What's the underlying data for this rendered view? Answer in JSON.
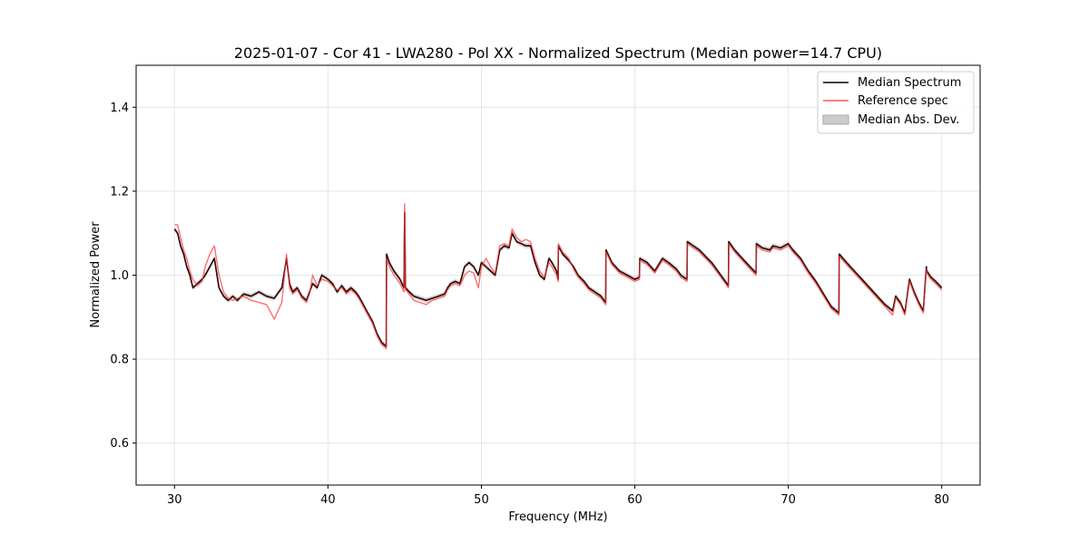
{
  "chart_data": {
    "type": "line",
    "title": "2025-01-07 - Cor 41 - LWA280 - Pol XX - Normalized Spectrum (Median power=14.7 CPU)",
    "xlabel": "Frequency (MHz)",
    "ylabel": "Normalized Power",
    "xlim": [
      27.5,
      82.5
    ],
    "ylim": [
      0.5,
      1.5
    ],
    "xticks": [
      30,
      40,
      50,
      60,
      70,
      80
    ],
    "yticks": [
      0.6,
      0.8,
      1.0,
      1.2,
      1.4
    ],
    "xtick_labels": [
      "30",
      "40",
      "50",
      "60",
      "70",
      "80"
    ],
    "ytick_labels": [
      "0.6",
      "0.8",
      "1.0",
      "1.2",
      "1.4"
    ],
    "grid": true,
    "legend_position": "top-right",
    "legend": [
      "Median Spectrum",
      "Reference spec",
      "Median Abs. Dev."
    ],
    "colors": {
      "median": "#000000",
      "reference": "#ff5555",
      "overlap": "#8b0000",
      "mad_fill": "#cccccc",
      "grid": "#e6e6e6"
    },
    "series": [
      {
        "name": "Median Spectrum",
        "x": [
          30.0,
          30.2,
          30.4,
          30.6,
          30.8,
          31.0,
          31.2,
          31.5,
          31.8,
          32.0,
          32.3,
          32.6,
          32.9,
          33.2,
          33.5,
          33.8,
          34.1,
          34.5,
          35.0,
          35.5,
          36.0,
          36.5,
          37.0,
          37.3,
          37.5,
          37.7,
          38.0,
          38.3,
          38.6,
          38.8,
          39.0,
          39.3,
          39.6,
          40.0,
          40.3,
          40.6,
          40.9,
          41.2,
          41.5,
          41.8,
          42.0,
          42.3,
          42.6,
          42.9,
          43.2,
          43.5,
          43.8,
          43.82,
          44.0,
          44.3,
          44.7,
          44.95,
          45.0,
          45.05,
          45.3,
          45.6,
          46.0,
          46.4,
          46.8,
          47.2,
          47.6,
          47.8,
          48.0,
          48.3,
          48.6,
          48.9,
          49.2,
          49.5,
          49.8,
          50.0,
          50.3,
          50.6,
          50.9,
          51.2,
          51.5,
          51.8,
          52.0,
          52.3,
          52.6,
          52.9,
          53.2,
          53.5,
          53.8,
          54.1,
          54.4,
          54.6,
          54.9,
          55.0,
          55.02,
          55.3,
          55.7,
          56.0,
          56.3,
          56.7,
          57.0,
          57.4,
          57.8,
          58.1,
          58.12,
          58.5,
          59.0,
          59.5,
          60.0,
          60.3,
          60.32,
          60.8,
          61.3,
          61.8,
          62.2,
          62.7,
          63.0,
          63.4,
          63.42,
          63.8,
          64.2,
          64.6,
          65.0,
          65.4,
          65.8,
          66.1,
          66.12,
          66.5,
          67.0,
          67.5,
          67.9,
          67.92,
          68.3,
          68.8,
          69.0,
          69.5,
          70.0,
          70.3,
          70.8,
          71.3,
          71.8,
          72.3,
          72.8,
          73.3,
          73.32,
          73.8,
          74.3,
          74.8,
          75.3,
          75.8,
          76.3,
          76.8,
          77.0,
          77.3,
          77.6,
          77.9,
          78.2,
          78.5,
          78.8,
          79.0,
          79.02,
          79.3,
          79.6,
          80.0
        ],
        "values": [
          1.11,
          1.1,
          1.07,
          1.05,
          1.02,
          1.0,
          0.97,
          0.98,
          0.99,
          1.0,
          1.02,
          1.04,
          0.97,
          0.95,
          0.94,
          0.95,
          0.94,
          0.955,
          0.95,
          0.96,
          0.95,
          0.945,
          0.97,
          1.04,
          0.98,
          0.96,
          0.97,
          0.95,
          0.94,
          0.96,
          0.98,
          0.97,
          1.0,
          0.99,
          0.98,
          0.96,
          0.975,
          0.96,
          0.97,
          0.96,
          0.95,
          0.93,
          0.91,
          0.89,
          0.86,
          0.84,
          0.83,
          1.05,
          1.03,
          1.01,
          0.99,
          0.97,
          1.15,
          0.97,
          0.96,
          0.95,
          0.945,
          0.94,
          0.945,
          0.95,
          0.955,
          0.97,
          0.98,
          0.985,
          0.98,
          1.02,
          1.03,
          1.02,
          1.0,
          1.03,
          1.02,
          1.01,
          1.0,
          1.06,
          1.07,
          1.065,
          1.1,
          1.08,
          1.075,
          1.07,
          1.07,
          1.03,
          1.0,
          0.99,
          1.04,
          1.03,
          1.01,
          0.99,
          1.07,
          1.05,
          1.035,
          1.02,
          1.0,
          0.985,
          0.97,
          0.96,
          0.95,
          0.935,
          1.06,
          1.03,
          1.01,
          1.0,
          0.99,
          0.995,
          1.04,
          1.03,
          1.01,
          1.04,
          1.03,
          1.015,
          1.0,
          0.99,
          1.08,
          1.07,
          1.06,
          1.045,
          1.03,
          1.01,
          0.99,
          0.975,
          1.08,
          1.06,
          1.04,
          1.02,
          1.005,
          1.075,
          1.065,
          1.06,
          1.07,
          1.065,
          1.075,
          1.06,
          1.04,
          1.01,
          0.985,
          0.955,
          0.925,
          0.91,
          1.05,
          1.03,
          1.01,
          0.99,
          0.97,
          0.95,
          0.93,
          0.915,
          0.95,
          0.935,
          0.91,
          0.99,
          0.96,
          0.935,
          0.915,
          1.02,
          1.01,
          0.995,
          0.985,
          0.97
        ]
      },
      {
        "name": "Reference spec",
        "x": [
          30.0,
          30.2,
          30.4,
          30.6,
          30.8,
          31.0,
          31.2,
          31.5,
          31.8,
          32.0,
          32.3,
          32.6,
          32.9,
          33.2,
          33.5,
          33.8,
          34.1,
          34.5,
          35.0,
          35.5,
          36.0,
          36.5,
          37.0,
          37.3,
          37.5,
          37.7,
          38.0,
          38.3,
          38.6,
          38.8,
          39.0,
          39.3,
          39.6,
          40.0,
          40.3,
          40.6,
          40.9,
          41.2,
          41.5,
          41.8,
          42.0,
          42.3,
          42.6,
          42.9,
          43.2,
          43.5,
          43.8,
          43.82,
          44.0,
          44.3,
          44.7,
          44.95,
          45.0,
          45.05,
          45.3,
          45.6,
          46.0,
          46.4,
          46.8,
          47.2,
          47.6,
          47.8,
          48.0,
          48.3,
          48.6,
          48.9,
          49.2,
          49.5,
          49.8,
          50.0,
          50.3,
          50.6,
          50.9,
          51.2,
          51.5,
          51.8,
          52.0,
          52.3,
          52.6,
          52.9,
          53.2,
          53.5,
          53.8,
          54.1,
          54.4,
          54.6,
          54.9,
          55.0,
          55.02,
          55.3,
          55.7,
          56.0,
          56.3,
          56.7,
          57.0,
          57.4,
          57.8,
          58.1,
          58.12,
          58.5,
          59.0,
          59.5,
          60.0,
          60.3,
          60.32,
          60.8,
          61.3,
          61.8,
          62.2,
          62.7,
          63.0,
          63.4,
          63.42,
          63.8,
          64.2,
          64.6,
          65.0,
          65.4,
          65.8,
          66.1,
          66.12,
          66.5,
          67.0,
          67.5,
          67.9,
          67.92,
          68.3,
          68.8,
          69.0,
          69.5,
          70.0,
          70.3,
          70.8,
          71.3,
          71.8,
          72.3,
          72.8,
          73.3,
          73.32,
          73.8,
          74.3,
          74.8,
          75.3,
          75.8,
          76.3,
          76.8,
          77.0,
          77.3,
          77.6,
          77.9,
          78.2,
          78.5,
          78.8,
          79.0,
          79.02,
          79.3,
          79.6,
          80.0
        ],
        "values": [
          1.12,
          1.12,
          1.09,
          1.06,
          1.04,
          1.01,
          0.99,
          0.975,
          0.985,
          1.02,
          1.05,
          1.07,
          1.0,
          0.96,
          0.945,
          0.94,
          0.945,
          0.95,
          0.94,
          0.935,
          0.93,
          0.895,
          0.935,
          1.05,
          0.97,
          0.955,
          0.965,
          0.945,
          0.935,
          0.955,
          1.0,
          0.975,
          0.99,
          0.985,
          0.975,
          0.965,
          0.97,
          0.955,
          0.965,
          0.955,
          0.945,
          0.925,
          0.905,
          0.885,
          0.855,
          0.835,
          0.825,
          1.04,
          1.02,
          1.0,
          0.98,
          0.96,
          1.17,
          0.965,
          0.955,
          0.94,
          0.935,
          0.93,
          0.94,
          0.945,
          0.95,
          0.965,
          0.975,
          0.98,
          0.975,
          1.0,
          1.01,
          1.005,
          0.97,
          1.02,
          1.04,
          1.02,
          1.005,
          1.07,
          1.075,
          1.07,
          1.11,
          1.09,
          1.08,
          1.085,
          1.08,
          1.04,
          1.01,
          0.995,
          1.03,
          1.02,
          1.0,
          0.985,
          1.075,
          1.055,
          1.04,
          1.015,
          0.995,
          0.98,
          0.965,
          0.955,
          0.945,
          0.93,
          1.055,
          1.025,
          1.005,
          0.995,
          0.985,
          0.99,
          1.035,
          1.025,
          1.005,
          1.035,
          1.025,
          1.01,
          0.995,
          0.985,
          1.075,
          1.065,
          1.055,
          1.04,
          1.025,
          1.005,
          0.985,
          0.97,
          1.075,
          1.055,
          1.035,
          1.015,
          1.0,
          1.07,
          1.06,
          1.055,
          1.065,
          1.06,
          1.07,
          1.055,
          1.035,
          1.005,
          0.98,
          0.95,
          0.92,
          0.905,
          1.045,
          1.025,
          1.005,
          0.985,
          0.965,
          0.945,
          0.925,
          0.905,
          0.945,
          0.93,
          0.905,
          0.985,
          0.955,
          0.93,
          0.91,
          1.015,
          1.005,
          0.99,
          0.98,
          0.965
        ]
      }
    ]
  }
}
